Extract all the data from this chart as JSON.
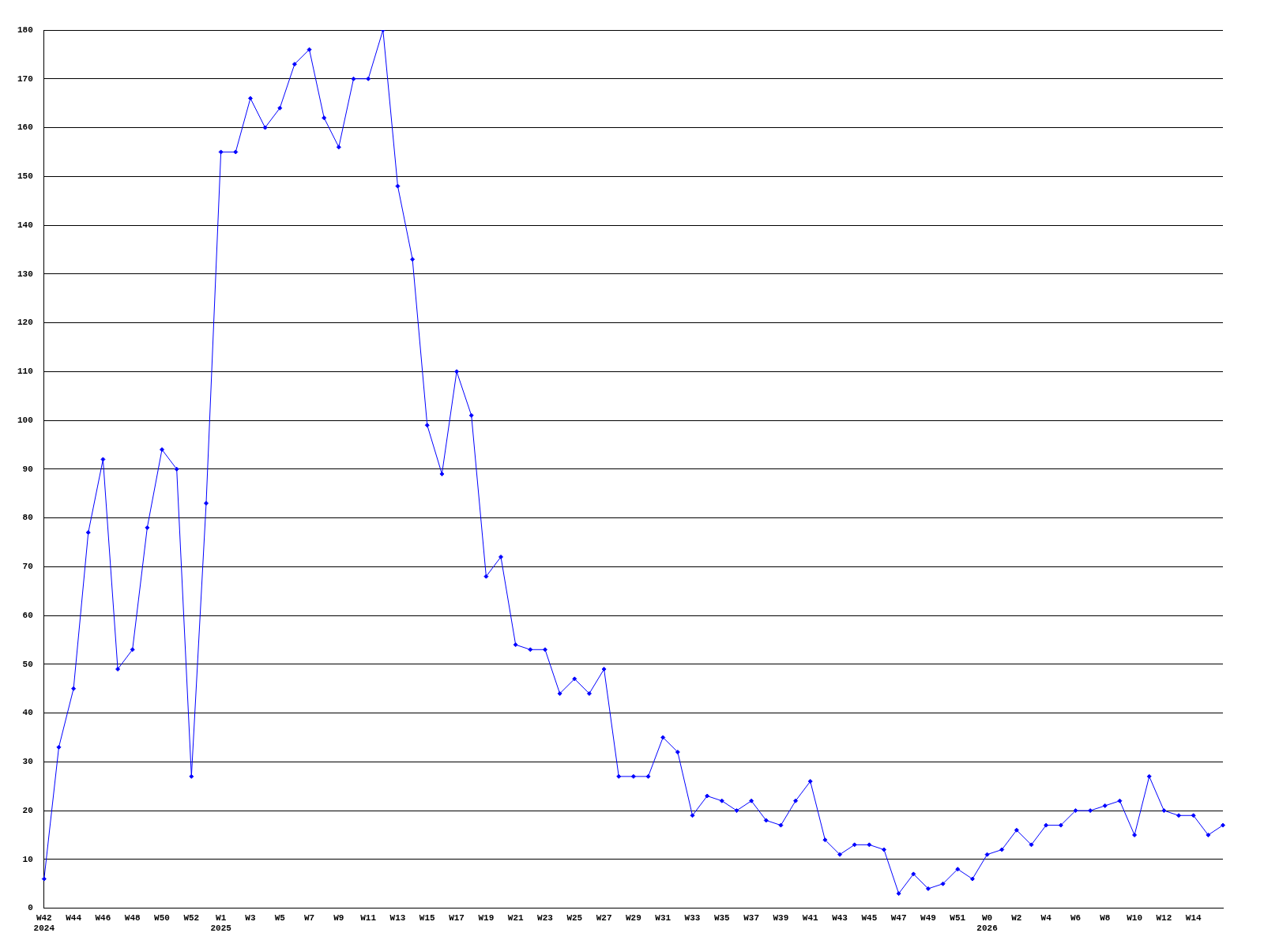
{
  "chart_data": {
    "type": "line",
    "categories": [
      "W42 2024",
      null,
      "W44",
      null,
      "W46",
      null,
      "W48",
      null,
      "W50",
      null,
      "W52",
      null,
      "W1 2025",
      null,
      "W3",
      null,
      "W5",
      null,
      "W7",
      null,
      "W9",
      null,
      "W11",
      null,
      "W13",
      null,
      "W15",
      null,
      "W17",
      null,
      "W19",
      null,
      "W21",
      null,
      "W23",
      null,
      "W25",
      null,
      "W27",
      null,
      "W29",
      null,
      "W31",
      null,
      "W33",
      null,
      "W35",
      null,
      "W37",
      null,
      "W39",
      null,
      "W41",
      null,
      "W43",
      null,
      "W45",
      null,
      "W47",
      null,
      "W49",
      null,
      "W51",
      null,
      "W0 2026",
      null,
      "W2",
      null,
      "W4",
      null,
      "W6",
      null,
      "W8",
      null,
      "W10",
      null,
      "W12",
      null,
      "W14",
      null,
      null
    ],
    "series": [
      {
        "color": "#0000ff",
        "values": [
          6,
          33,
          45,
          77,
          92,
          49,
          53,
          78,
          94,
          90,
          27,
          83,
          155,
          155,
          166,
          160,
          164,
          173,
          176,
          162,
          156,
          170,
          170,
          180,
          148,
          133,
          99,
          89,
          110,
          101,
          68,
          72,
          54,
          53,
          53,
          44,
          47,
          44,
          49,
          27,
          27,
          27,
          35,
          32,
          19,
          23,
          22,
          20,
          22,
          18,
          17,
          22,
          26,
          14,
          11,
          13,
          13,
          12,
          3,
          7,
          4,
          5,
          8,
          6,
          11,
          12,
          16,
          13,
          17,
          17,
          20,
          20,
          21,
          22,
          15,
          27,
          20,
          19,
          19,
          15,
          17
        ]
      }
    ],
    "ylim": [
      0,
      180
    ],
    "yticks": [
      0,
      10,
      20,
      30,
      40,
      50,
      60,
      70,
      80,
      90,
      100,
      110,
      120,
      130,
      140,
      150,
      160,
      170,
      180
    ],
    "grid": "y",
    "legend": false,
    "marker": "diamond",
    "line_style": "solid"
  }
}
